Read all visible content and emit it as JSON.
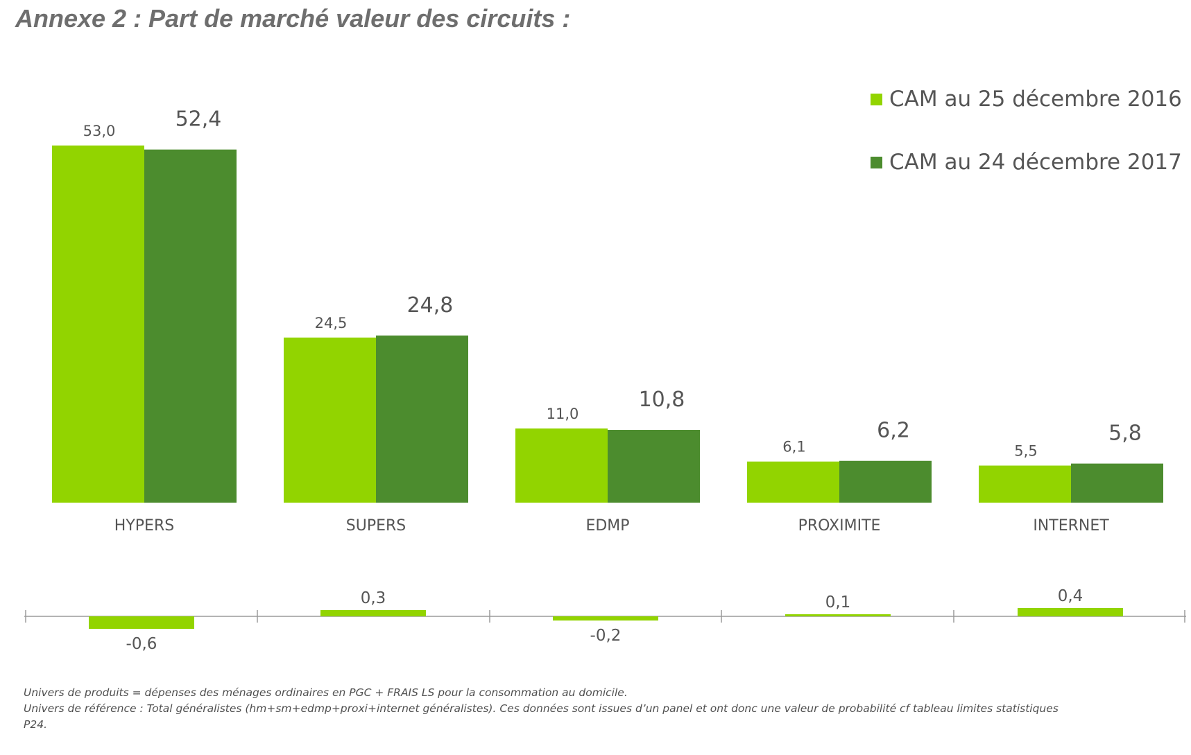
{
  "heading": "Annexe 2 : Part de marché valeur des circuits :",
  "chart_data": [
    {
      "type": "bar",
      "categories": [
        "HYPERS",
        "SUPERS",
        "EDMP",
        "PROXIMITE",
        "INTERNET"
      ],
      "series": [
        {
          "name": "CAM au 25 décembre 2016",
          "values": [
            53.0,
            24.5,
            11.0,
            6.1,
            5.5
          ],
          "labels": [
            "53,0",
            "24,5",
            "11,0",
            "6,1",
            "5,5"
          ],
          "color": "#92d400"
        },
        {
          "name": "CAM au 24 décembre 2017",
          "values": [
            52.4,
            24.8,
            10.8,
            6.2,
            5.8
          ],
          "labels": [
            "52,4",
            "24,8",
            "10,8",
            "6,2",
            "5,8"
          ],
          "color": "#4c8c2e"
        }
      ],
      "legend_position": "top-right",
      "grid": false
    },
    {
      "type": "bar",
      "categories": [
        "HYPERS",
        "SUPERS",
        "EDMP",
        "PROXIMITE",
        "INTERNET"
      ],
      "values": [
        -0.6,
        0.3,
        -0.2,
        0.1,
        0.4
      ],
      "labels": [
        "-0,6",
        "0,3",
        "-0,2",
        "0,1",
        "0,4"
      ],
      "color": "#92d400",
      "grid": false
    }
  ],
  "footnote": [
    "Univers de produits = dépenses des ménages ordinaires en PGC + FRAIS LS pour la consommation au domicile.",
    "Univers de référence : Total généralistes (hm+sm+edmp+proxi+internet généralistes). Ces données sont issues d’un panel et ont donc une valeur de probabilité cf tableau  limites statistiques",
    "P24."
  ]
}
